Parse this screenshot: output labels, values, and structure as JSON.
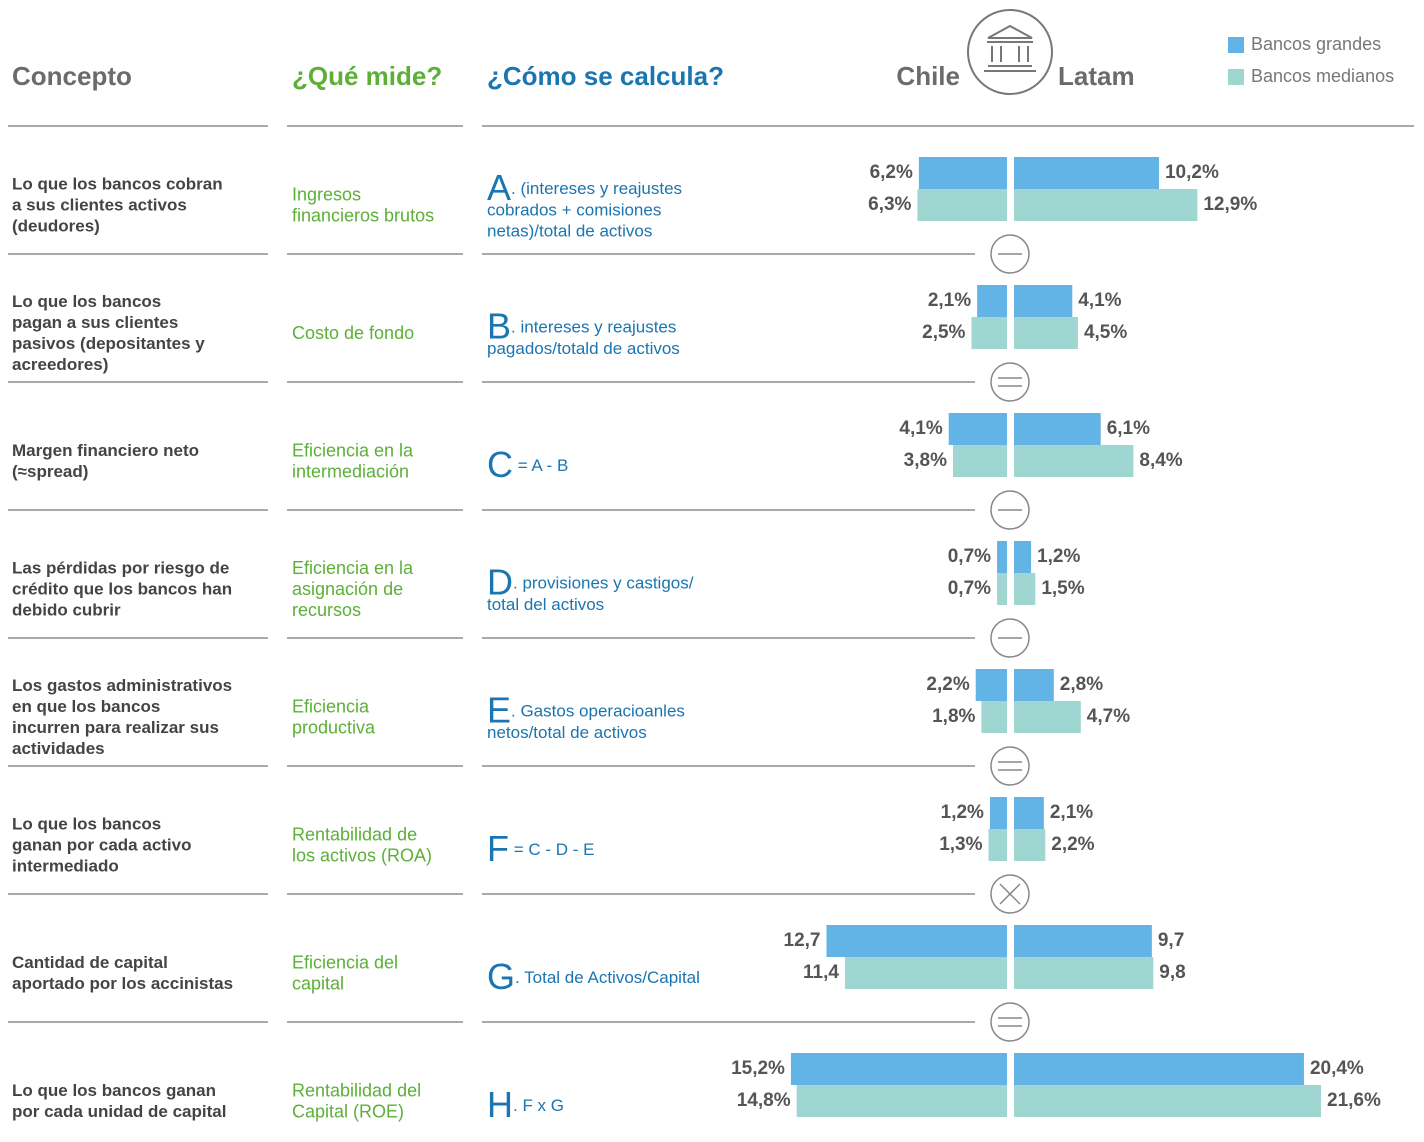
{
  "header": {
    "concept": "Concepto",
    "measure": "¿Qué mide?",
    "formula": "¿Cómo se calcula?",
    "chile": "Chile",
    "latam": "Latam"
  },
  "legend": [
    {
      "name": "Bancos grandes",
      "color": "#62b3e6"
    },
    {
      "name": "Bancos medianos",
      "color": "#9fd6d2"
    }
  ],
  "rows": [
    {
      "concept": [
        "Lo que los bancos cobran",
        "a sus clientes activos",
        "(deudores)"
      ],
      "measure": [
        "Ingresos",
        "financieros brutos"
      ],
      "letter": "A",
      "formula": [
        ". (intereses y reajustes",
        "cobrados + comisiones",
        "netas)/total de activos"
      ],
      "chile": {
        "values": [
          6.2,
          6.3
        ],
        "value_labels": [
          "6,2%",
          "6,3%"
        ]
      },
      "latam": {
        "values": [
          10.2,
          12.9
        ],
        "value_labels": [
          "10,2%",
          "12,9%"
        ]
      },
      "operator": "minus"
    },
    {
      "concept": [
        "Lo que los bancos",
        "pagan a sus clientes",
        "pasivos (depositantes y",
        "acreedores)"
      ],
      "measure": [
        "Costo de fondo"
      ],
      "letter": "B",
      "formula": [
        ". intereses y reajustes",
        "pagados/totald de activos"
      ],
      "chile": {
        "values": [
          2.1,
          2.5
        ],
        "value_labels": [
          "2,1%",
          "2,5%"
        ]
      },
      "latam": {
        "values": [
          4.1,
          4.5
        ],
        "value_labels": [
          "4,1%",
          "4,5%"
        ]
      },
      "operator": "equals"
    },
    {
      "concept": [
        "Margen financiero neto",
        "(≈spread)"
      ],
      "measure": [
        "Eficiencia en la",
        "intermediación"
      ],
      "letter": "C",
      "formula": [
        " = A - B"
      ],
      "chile": {
        "values": [
          4.1,
          3.8
        ],
        "value_labels": [
          "4,1%",
          "3,8%"
        ]
      },
      "latam": {
        "values": [
          6.1,
          8.4
        ],
        "value_labels": [
          "6,1%",
          "8,4%"
        ]
      },
      "operator": "minus"
    },
    {
      "concept": [
        "Las pérdidas por riesgo de",
        "crédito que los bancos han",
        "debido cubrir"
      ],
      "measure": [
        "Eficiencia en la",
        "asignación de",
        "recursos"
      ],
      "letter": "D",
      "formula": [
        ". provisiones y castigos/",
        "total del activos"
      ],
      "chile": {
        "values": [
          0.7,
          0.7
        ],
        "value_labels": [
          "0,7%",
          "0,7%"
        ]
      },
      "latam": {
        "values": [
          1.2,
          1.5
        ],
        "value_labels": [
          "1,2%",
          "1,5%"
        ]
      },
      "operator": "minus"
    },
    {
      "concept": [
        "Los gastos administrativos",
        "en que los bancos",
        "incurren para realizar sus",
        "actividades"
      ],
      "measure": [
        "Eficiencia",
        "productiva"
      ],
      "letter": "E",
      "formula": [
        ". Gastos operacioanles",
        "netos/total de activos"
      ],
      "chile": {
        "values": [
          2.2,
          1.8
        ],
        "value_labels": [
          "2,2%",
          "1,8%"
        ]
      },
      "latam": {
        "values": [
          2.8,
          4.7
        ],
        "value_labels": [
          "2,8%",
          "4,7%"
        ]
      },
      "operator": "equals"
    },
    {
      "concept": [
        "Lo que los bancos",
        "ganan por cada activo",
        "intermediado"
      ],
      "measure": [
        "Rentabilidad de",
        "los activos (ROA)"
      ],
      "letter": "F",
      "formula": [
        " = C - D - E"
      ],
      "chile": {
        "values": [
          1.2,
          1.3
        ],
        "value_labels": [
          "1,2%",
          "1,3%"
        ]
      },
      "latam": {
        "values": [
          2.1,
          2.2
        ],
        "value_labels": [
          "2,1%",
          "2,2%"
        ]
      },
      "operator": "times"
    },
    {
      "concept": [
        "Cantidad de capital",
        "aportado por los accinistas"
      ],
      "measure": [
        "Eficiencia del",
        "capital"
      ],
      "letter": "G",
      "formula": [
        ". Total de Activos/Capital"
      ],
      "chile": {
        "values": [
          12.7,
          11.4
        ],
        "value_labels": [
          "12,7",
          "11,4"
        ]
      },
      "latam": {
        "values": [
          9.7,
          9.8
        ],
        "value_labels": [
          "9,7",
          "9,8"
        ]
      },
      "operator": "equals"
    },
    {
      "concept": [
        "Lo que los bancos ganan",
        "por cada unidad de capital"
      ],
      "measure": [
        "Rentabilidad del",
        "Capital (ROE)"
      ],
      "letter": "H",
      "formula": [
        ". F x G"
      ],
      "chile": {
        "values": [
          15.2,
          14.8
        ],
        "value_labels": [
          "15,2%",
          "14,8%"
        ]
      },
      "latam": {
        "values": [
          20.4,
          21.6
        ],
        "value_labels": [
          "20,4%",
          "21,6%"
        ]
      },
      "operator": "none"
    }
  ]
}
